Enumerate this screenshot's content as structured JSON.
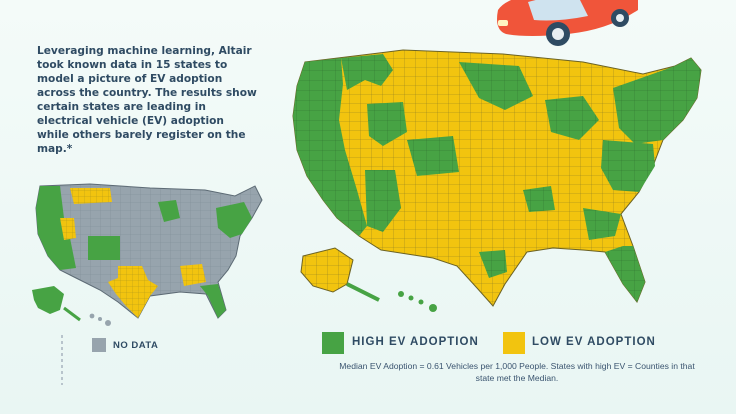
{
  "intro": {
    "text": "Leveraging machine learning, Altair took known data in 15 states to model a picture of EV adoption across the country. The results show certain states are leading in electrical vehicle (EV) adoption while others barely register on the map.*"
  },
  "legend": {
    "high_label": "HIGH EV ADOPTION",
    "low_label": "LOW EV ADOPTION",
    "nodata_label": "NO DATA",
    "colors": {
      "high": "#47a344",
      "low": "#f2c40f",
      "nodata": "#97a4ad",
      "car": "#f0553a"
    }
  },
  "note": {
    "text": "Median EV Adoption = 0.61 Vehicles per 1,000 People. States with high EV = Counties in that state met the Median."
  },
  "icons": {
    "car": "car-illustration-icon"
  }
}
